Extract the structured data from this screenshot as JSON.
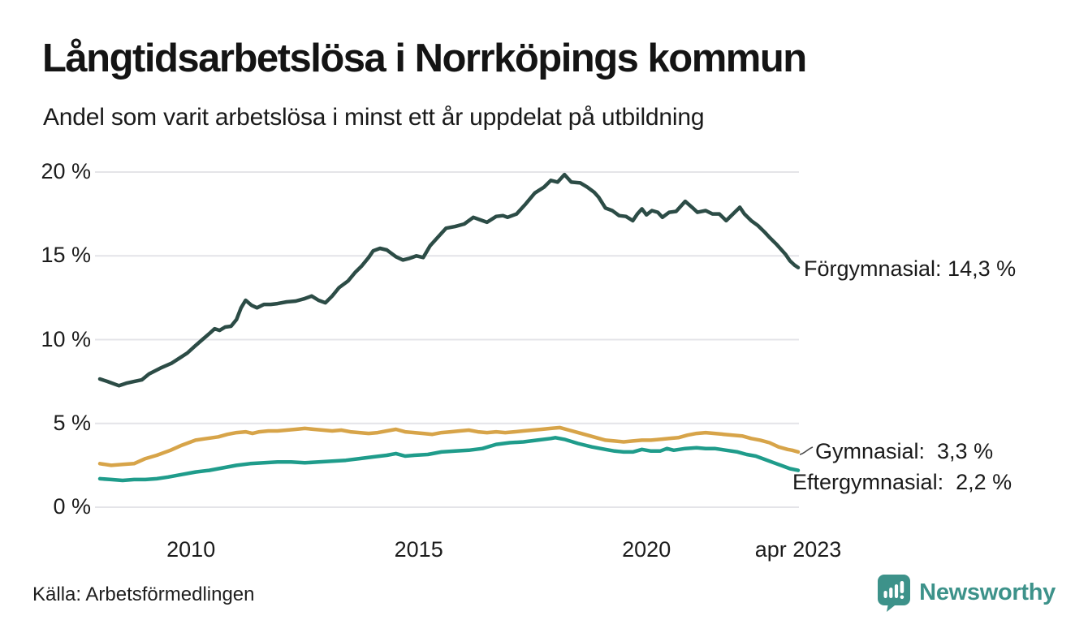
{
  "header": {
    "title": "Långtidsarbetslösa i Norrköpings kommun",
    "subtitle": "Andel som varit arbetslösa i minst ett år uppdelat på utbildning"
  },
  "footer": {
    "source": "Källa: Arbetsförmedlingen",
    "brand_name": "Newsworthy"
  },
  "colors": {
    "forgymnasial": "#2c4c46",
    "gymnasial": "#d7a449",
    "eftergymnasial": "#1f9c8b",
    "brand_teal": "#3d928a",
    "gridline": "#e4e4e8",
    "leader": "#4a4a4a",
    "text": "#1a1a1a"
  },
  "chart_data": {
    "type": "line",
    "title": "Långtidsarbetslösa i Norrköpings kommun",
    "subtitle": "Andel som varit arbetslösa i minst ett år uppdelat på utbildning",
    "grid": true,
    "legend_position": "end-of-line labels",
    "x_axis": {
      "label": "",
      "range_years": [
        2008,
        2023.33
      ],
      "ticks": [
        {
          "label": "2010",
          "year": 2010
        },
        {
          "label": "2015",
          "year": 2015
        },
        {
          "label": "2020",
          "year": 2020
        },
        {
          "label": "apr 2023",
          "year": 2023.33
        }
      ]
    },
    "y_axis": {
      "label": "",
      "unit": "%",
      "range": [
        0,
        20
      ],
      "ticks": [
        {
          "label": "0 %",
          "value": 0
        },
        {
          "label": "5 %",
          "value": 5
        },
        {
          "label": "10 %",
          "value": 10
        },
        {
          "label": "15 %",
          "value": 15
        },
        {
          "label": "20 %",
          "value": 20
        }
      ]
    },
    "series": [
      {
        "name": "Förgymnasial",
        "color": "#2c4c46",
        "end_value": "14,3 %",
        "end_label": "Förgymnasial: 14,3 %",
        "points": [
          [
            2008.0,
            7.65
          ],
          [
            2008.17,
            7.5
          ],
          [
            2008.42,
            7.25
          ],
          [
            2008.58,
            7.4
          ],
          [
            2008.75,
            7.5
          ],
          [
            2008.92,
            7.6
          ],
          [
            2009.08,
            7.95
          ],
          [
            2009.33,
            8.3
          ],
          [
            2009.58,
            8.6
          ],
          [
            2009.75,
            8.9
          ],
          [
            2009.92,
            9.2
          ],
          [
            2010.08,
            9.6
          ],
          [
            2010.25,
            10.0
          ],
          [
            2010.42,
            10.4
          ],
          [
            2010.52,
            10.65
          ],
          [
            2010.63,
            10.55
          ],
          [
            2010.75,
            10.75
          ],
          [
            2010.88,
            10.8
          ],
          [
            2011.0,
            11.2
          ],
          [
            2011.1,
            11.9
          ],
          [
            2011.2,
            12.35
          ],
          [
            2011.33,
            12.05
          ],
          [
            2011.45,
            11.9
          ],
          [
            2011.6,
            12.1
          ],
          [
            2011.75,
            12.1
          ],
          [
            2011.9,
            12.15
          ],
          [
            2012.1,
            12.25
          ],
          [
            2012.3,
            12.3
          ],
          [
            2012.5,
            12.45
          ],
          [
            2012.65,
            12.6
          ],
          [
            2012.8,
            12.35
          ],
          [
            2012.95,
            12.2
          ],
          [
            2013.1,
            12.6
          ],
          [
            2013.25,
            13.1
          ],
          [
            2013.45,
            13.5
          ],
          [
            2013.6,
            14.0
          ],
          [
            2013.75,
            14.4
          ],
          [
            2013.9,
            14.9
          ],
          [
            2014.0,
            15.3
          ],
          [
            2014.15,
            15.45
          ],
          [
            2014.3,
            15.35
          ],
          [
            2014.5,
            14.95
          ],
          [
            2014.65,
            14.75
          ],
          [
            2014.8,
            14.85
          ],
          [
            2014.95,
            15.0
          ],
          [
            2015.1,
            14.9
          ],
          [
            2015.25,
            15.6
          ],
          [
            2015.45,
            16.2
          ],
          [
            2015.6,
            16.65
          ],
          [
            2015.8,
            16.75
          ],
          [
            2016.0,
            16.9
          ],
          [
            2016.2,
            17.3
          ],
          [
            2016.35,
            17.15
          ],
          [
            2016.5,
            17.0
          ],
          [
            2016.7,
            17.35
          ],
          [
            2016.85,
            17.4
          ],
          [
            2016.95,
            17.3
          ],
          [
            2017.15,
            17.5
          ],
          [
            2017.35,
            18.1
          ],
          [
            2017.55,
            18.75
          ],
          [
            2017.75,
            19.1
          ],
          [
            2017.9,
            19.5
          ],
          [
            2018.05,
            19.4
          ],
          [
            2018.2,
            19.85
          ],
          [
            2018.35,
            19.4
          ],
          [
            2018.55,
            19.35
          ],
          [
            2018.7,
            19.1
          ],
          [
            2018.85,
            18.8
          ],
          [
            2018.95,
            18.5
          ],
          [
            2019.1,
            17.85
          ],
          [
            2019.25,
            17.7
          ],
          [
            2019.4,
            17.4
          ],
          [
            2019.55,
            17.35
          ],
          [
            2019.7,
            17.1
          ],
          [
            2019.8,
            17.5
          ],
          [
            2019.9,
            17.8
          ],
          [
            2020.0,
            17.45
          ],
          [
            2020.12,
            17.7
          ],
          [
            2020.25,
            17.6
          ],
          [
            2020.35,
            17.3
          ],
          [
            2020.5,
            17.6
          ],
          [
            2020.65,
            17.65
          ],
          [
            2020.85,
            18.25
          ],
          [
            2021.0,
            17.9
          ],
          [
            2021.12,
            17.6
          ],
          [
            2021.3,
            17.7
          ],
          [
            2021.45,
            17.5
          ],
          [
            2021.6,
            17.5
          ],
          [
            2021.75,
            17.1
          ],
          [
            2021.9,
            17.5
          ],
          [
            2022.05,
            17.9
          ],
          [
            2022.15,
            17.5
          ],
          [
            2022.3,
            17.1
          ],
          [
            2022.45,
            16.8
          ],
          [
            2022.6,
            16.4
          ],
          [
            2022.7,
            16.1
          ],
          [
            2022.85,
            15.7
          ],
          [
            2022.95,
            15.4
          ],
          [
            2023.05,
            15.1
          ],
          [
            2023.15,
            14.7
          ],
          [
            2023.25,
            14.45
          ],
          [
            2023.33,
            14.3
          ]
        ]
      },
      {
        "name": "Gymnasial",
        "color": "#d7a449",
        "end_value": "3,3 %",
        "end_label": "Gymnasial:  3,3 %",
        "points": [
          [
            2008.0,
            2.6
          ],
          [
            2008.25,
            2.5
          ],
          [
            2008.5,
            2.55
          ],
          [
            2008.75,
            2.6
          ],
          [
            2009.0,
            2.9
          ],
          [
            2009.25,
            3.1
          ],
          [
            2009.55,
            3.4
          ],
          [
            2009.8,
            3.7
          ],
          [
            2010.1,
            4.0
          ],
          [
            2010.35,
            4.1
          ],
          [
            2010.6,
            4.2
          ],
          [
            2010.8,
            4.35
          ],
          [
            2011.0,
            4.45
          ],
          [
            2011.2,
            4.5
          ],
          [
            2011.35,
            4.4
          ],
          [
            2011.5,
            4.5
          ],
          [
            2011.7,
            4.55
          ],
          [
            2011.9,
            4.55
          ],
          [
            2012.1,
            4.6
          ],
          [
            2012.3,
            4.65
          ],
          [
            2012.5,
            4.7
          ],
          [
            2012.7,
            4.65
          ],
          [
            2012.9,
            4.6
          ],
          [
            2013.1,
            4.55
          ],
          [
            2013.3,
            4.6
          ],
          [
            2013.5,
            4.5
          ],
          [
            2013.7,
            4.45
          ],
          [
            2013.9,
            4.4
          ],
          [
            2014.1,
            4.45
          ],
          [
            2014.3,
            4.55
          ],
          [
            2014.5,
            4.65
          ],
          [
            2014.7,
            4.5
          ],
          [
            2014.9,
            4.45
          ],
          [
            2015.1,
            4.4
          ],
          [
            2015.3,
            4.35
          ],
          [
            2015.5,
            4.45
          ],
          [
            2015.7,
            4.5
          ],
          [
            2015.9,
            4.55
          ],
          [
            2016.1,
            4.6
          ],
          [
            2016.3,
            4.5
          ],
          [
            2016.5,
            4.45
          ],
          [
            2016.7,
            4.5
          ],
          [
            2016.9,
            4.45
          ],
          [
            2017.1,
            4.5
          ],
          [
            2017.3,
            4.55
          ],
          [
            2017.5,
            4.6
          ],
          [
            2017.7,
            4.65
          ],
          [
            2017.9,
            4.7
          ],
          [
            2018.1,
            4.75
          ],
          [
            2018.3,
            4.6
          ],
          [
            2018.5,
            4.45
          ],
          [
            2018.7,
            4.3
          ],
          [
            2018.9,
            4.15
          ],
          [
            2019.1,
            4.0
          ],
          [
            2019.3,
            3.95
          ],
          [
            2019.5,
            3.9
          ],
          [
            2019.7,
            3.95
          ],
          [
            2019.9,
            4.0
          ],
          [
            2020.1,
            4.0
          ],
          [
            2020.3,
            4.05
          ],
          [
            2020.5,
            4.1
          ],
          [
            2020.7,
            4.15
          ],
          [
            2020.9,
            4.3
          ],
          [
            2021.1,
            4.4
          ],
          [
            2021.3,
            4.45
          ],
          [
            2021.5,
            4.4
          ],
          [
            2021.7,
            4.35
          ],
          [
            2021.9,
            4.3
          ],
          [
            2022.1,
            4.25
          ],
          [
            2022.3,
            4.1
          ],
          [
            2022.5,
            4.0
          ],
          [
            2022.7,
            3.85
          ],
          [
            2022.9,
            3.6
          ],
          [
            2023.1,
            3.45
          ],
          [
            2023.2,
            3.4
          ],
          [
            2023.33,
            3.3
          ]
        ]
      },
      {
        "name": "Eftergymnasial",
        "color": "#1f9c8b",
        "end_value": "2,2 %",
        "end_label": "Eftergymnasial:  2,2 %",
        "points": [
          [
            2008.0,
            1.7
          ],
          [
            2008.25,
            1.65
          ],
          [
            2008.5,
            1.6
          ],
          [
            2008.75,
            1.65
          ],
          [
            2009.0,
            1.65
          ],
          [
            2009.25,
            1.7
          ],
          [
            2009.5,
            1.8
          ],
          [
            2009.8,
            1.95
          ],
          [
            2010.1,
            2.1
          ],
          [
            2010.4,
            2.2
          ],
          [
            2010.7,
            2.35
          ],
          [
            2011.0,
            2.5
          ],
          [
            2011.3,
            2.6
          ],
          [
            2011.6,
            2.65
          ],
          [
            2011.9,
            2.7
          ],
          [
            2012.2,
            2.7
          ],
          [
            2012.5,
            2.65
          ],
          [
            2012.8,
            2.7
          ],
          [
            2013.1,
            2.75
          ],
          [
            2013.4,
            2.8
          ],
          [
            2013.7,
            2.9
          ],
          [
            2014.0,
            3.0
          ],
          [
            2014.3,
            3.1
          ],
          [
            2014.5,
            3.2
          ],
          [
            2014.7,
            3.05
          ],
          [
            2014.9,
            3.1
          ],
          [
            2015.2,
            3.15
          ],
          [
            2015.5,
            3.3
          ],
          [
            2015.8,
            3.35
          ],
          [
            2016.1,
            3.4
          ],
          [
            2016.4,
            3.5
          ],
          [
            2016.7,
            3.75
          ],
          [
            2017.0,
            3.85
          ],
          [
            2017.3,
            3.9
          ],
          [
            2017.6,
            4.0
          ],
          [
            2017.9,
            4.1
          ],
          [
            2018.0,
            4.15
          ],
          [
            2018.2,
            4.05
          ],
          [
            2018.5,
            3.8
          ],
          [
            2018.8,
            3.6
          ],
          [
            2019.1,
            3.45
          ],
          [
            2019.3,
            3.35
          ],
          [
            2019.5,
            3.3
          ],
          [
            2019.7,
            3.3
          ],
          [
            2019.9,
            3.45
          ],
          [
            2020.1,
            3.35
          ],
          [
            2020.3,
            3.35
          ],
          [
            2020.45,
            3.5
          ],
          [
            2020.6,
            3.4
          ],
          [
            2020.85,
            3.5
          ],
          [
            2021.1,
            3.55
          ],
          [
            2021.3,
            3.5
          ],
          [
            2021.5,
            3.5
          ],
          [
            2021.75,
            3.4
          ],
          [
            2022.0,
            3.3
          ],
          [
            2022.2,
            3.15
          ],
          [
            2022.4,
            3.05
          ],
          [
            2022.6,
            2.85
          ],
          [
            2022.8,
            2.65
          ],
          [
            2023.0,
            2.45
          ],
          [
            2023.15,
            2.3
          ],
          [
            2023.33,
            2.2
          ]
        ]
      }
    ]
  }
}
